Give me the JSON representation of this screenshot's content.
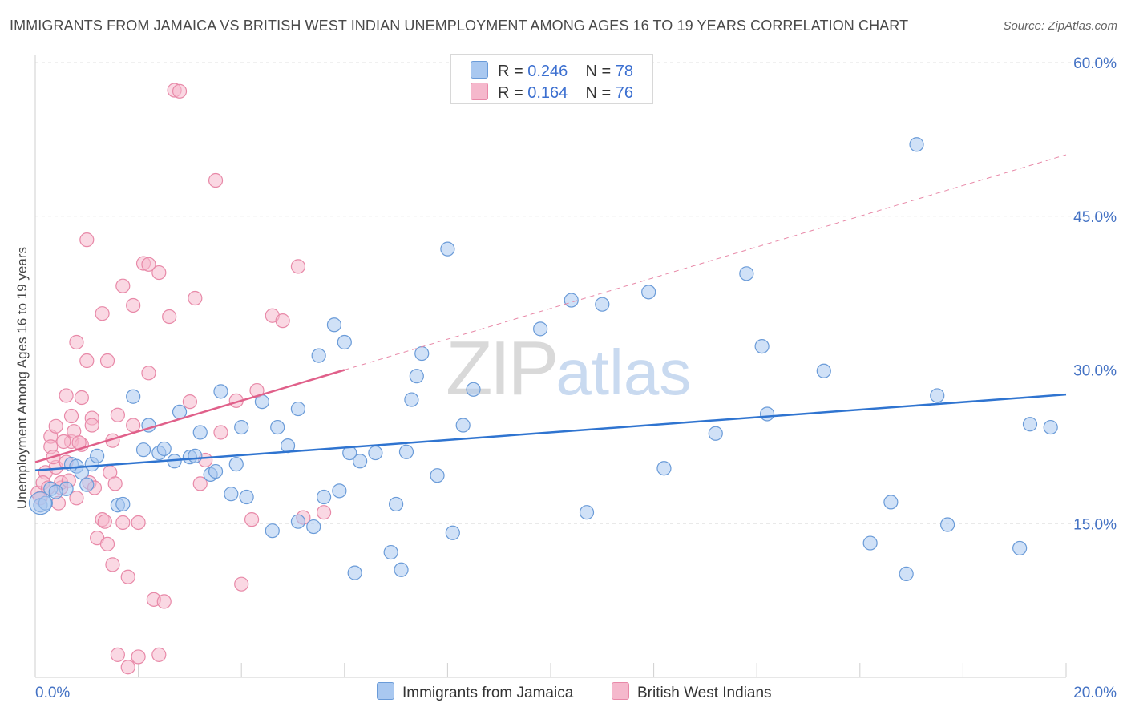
{
  "header": {
    "title": "IMMIGRANTS FROM JAMAICA VS BRITISH WEST INDIAN UNEMPLOYMENT AMONG AGES 16 TO 19 YEARS CORRELATION CHART",
    "source": "Source: ZipAtlas.com"
  },
  "watermark": {
    "zip": "ZIP",
    "atlas": "atlas"
  },
  "legend": {
    "rows": [
      {
        "r_label": "R =",
        "r_value": "0.246",
        "n_label": "N =",
        "n_value": "78"
      },
      {
        "r_label": "R =",
        "r_value": "0.164",
        "n_label": "N =",
        "n_value": "76"
      }
    ]
  },
  "chart_data": {
    "type": "scatter",
    "ylabel": "Unemployment Among Ages 16 to 19 years",
    "xlim": [
      0,
      20
    ],
    "ylim": [
      0,
      60
    ],
    "x_tick_labels": [
      "0.0%",
      "20.0%"
    ],
    "y_ticks": [
      15,
      30,
      45,
      60
    ],
    "y_tick_labels": [
      "15.0%",
      "30.0%",
      "45.0%",
      "60.0%"
    ],
    "grid": true,
    "legend_position": "top-center",
    "colors": {
      "blue_fill": "#a9c8f0",
      "blue_stroke": "#6a9bd8",
      "blue_line": "#2f74d0",
      "pink_fill": "#f5b8cc",
      "pink_stroke": "#e889a8",
      "pink_line": "#e0608a"
    },
    "series": [
      {
        "name": "Immigrants from Jamaica",
        "color": "#a9c8f0",
        "trend": {
          "x": [
            0,
            20
          ],
          "y": [
            20.2,
            27.6
          ],
          "style": "solid"
        },
        "points": [
          [
            0.1,
            16.8
          ],
          [
            0.3,
            18.4
          ],
          [
            0.6,
            18.4
          ],
          [
            0.7,
            20.8
          ],
          [
            0.8,
            20.6
          ],
          [
            0.9,
            20.0
          ],
          [
            1.0,
            18.8
          ],
          [
            1.1,
            20.8
          ],
          [
            1.6,
            16.8
          ],
          [
            1.7,
            16.9
          ],
          [
            1.9,
            27.4
          ],
          [
            2.1,
            22.2
          ],
          [
            2.2,
            24.6
          ],
          [
            2.4,
            21.9
          ],
          [
            2.5,
            22.3
          ],
          [
            2.7,
            21.1
          ],
          [
            2.8,
            25.9
          ],
          [
            3.0,
            21.5
          ],
          [
            3.1,
            21.6
          ],
          [
            3.2,
            23.9
          ],
          [
            3.4,
            19.8
          ],
          [
            3.5,
            20.1
          ],
          [
            3.6,
            27.9
          ],
          [
            3.8,
            17.9
          ],
          [
            3.9,
            20.8
          ],
          [
            4.0,
            24.4
          ],
          [
            4.1,
            17.6
          ],
          [
            4.4,
            26.9
          ],
          [
            4.6,
            14.3
          ],
          [
            4.7,
            24.4
          ],
          [
            4.9,
            22.6
          ],
          [
            5.1,
            15.2
          ],
          [
            5.1,
            26.2
          ],
          [
            5.4,
            14.7
          ],
          [
            5.5,
            31.4
          ],
          [
            5.6,
            17.6
          ],
          [
            5.8,
            34.4
          ],
          [
            5.9,
            18.2
          ],
          [
            6.0,
            32.7
          ],
          [
            6.1,
            21.9
          ],
          [
            6.2,
            10.2
          ],
          [
            6.3,
            21.1
          ],
          [
            6.6,
            21.9
          ],
          [
            6.9,
            12.2
          ],
          [
            7.0,
            16.9
          ],
          [
            7.1,
            10.5
          ],
          [
            7.2,
            22.0
          ],
          [
            7.3,
            27.1
          ],
          [
            7.4,
            29.4
          ],
          [
            7.5,
            31.6
          ],
          [
            7.8,
            19.7
          ],
          [
            8.1,
            14.1
          ],
          [
            8.3,
            24.6
          ],
          [
            8.5,
            28.1
          ],
          [
            9.8,
            34.0
          ],
          [
            10.4,
            36.8
          ],
          [
            10.7,
            16.1
          ],
          [
            11.0,
            36.4
          ],
          [
            11.9,
            37.6
          ],
          [
            12.2,
            20.4
          ],
          [
            13.8,
            39.4
          ],
          [
            14.1,
            32.3
          ],
          [
            14.2,
            25.7
          ],
          [
            15.3,
            29.9
          ],
          [
            16.2,
            13.1
          ],
          [
            16.6,
            17.1
          ],
          [
            16.9,
            10.1
          ],
          [
            17.1,
            52.0
          ],
          [
            17.5,
            27.5
          ],
          [
            17.7,
            14.9
          ],
          [
            19.1,
            12.6
          ],
          [
            19.3,
            24.7
          ],
          [
            19.7,
            24.4
          ],
          [
            0.2,
            17.0
          ],
          [
            0.4,
            18.1
          ],
          [
            1.2,
            21.6
          ],
          [
            8.0,
            41.8
          ],
          [
            13.2,
            23.8
          ]
        ]
      },
      {
        "name": "British West Indians",
        "color": "#f5b8cc",
        "trend": {
          "x": [
            0,
            6
          ],
          "y": [
            21.0,
            30.0
          ],
          "style": "solid",
          "extension": {
            "x": [
              6,
              20
            ],
            "y": [
              30.0,
              51.0
            ],
            "style": "dashed"
          }
        },
        "points": [
          [
            0.05,
            18.0
          ],
          [
            0.1,
            17.5
          ],
          [
            0.2,
            20.0
          ],
          [
            0.3,
            23.5
          ],
          [
            0.3,
            22.5
          ],
          [
            0.4,
            24.5
          ],
          [
            0.4,
            20.5
          ],
          [
            0.5,
            18.5
          ],
          [
            0.5,
            19.0
          ],
          [
            0.6,
            21.0
          ],
          [
            0.6,
            27.5
          ],
          [
            0.7,
            23.0
          ],
          [
            0.7,
            25.5
          ],
          [
            0.8,
            17.5
          ],
          [
            0.8,
            32.7
          ],
          [
            0.9,
            27.3
          ],
          [
            0.9,
            22.7
          ],
          [
            1.0,
            42.7
          ],
          [
            1.0,
            30.9
          ],
          [
            1.1,
            25.3
          ],
          [
            1.1,
            24.6
          ],
          [
            1.2,
            13.6
          ],
          [
            1.3,
            35.5
          ],
          [
            1.3,
            15.4
          ],
          [
            1.4,
            13.0
          ],
          [
            1.4,
            30.9
          ],
          [
            1.5,
            11.0
          ],
          [
            1.5,
            23.1
          ],
          [
            1.6,
            25.6
          ],
          [
            1.7,
            15.1
          ],
          [
            1.7,
            38.2
          ],
          [
            1.8,
            9.8
          ],
          [
            1.9,
            36.3
          ],
          [
            1.9,
            24.6
          ],
          [
            2.0,
            15.1
          ],
          [
            2.1,
            40.4
          ],
          [
            2.2,
            40.3
          ],
          [
            2.2,
            29.7
          ],
          [
            2.3,
            7.6
          ],
          [
            2.4,
            39.5
          ],
          [
            2.5,
            7.4
          ],
          [
            2.6,
            35.2
          ],
          [
            2.7,
            57.3
          ],
          [
            2.8,
            57.2
          ],
          [
            3.0,
            26.9
          ],
          [
            3.1,
            37.0
          ],
          [
            3.2,
            18.9
          ],
          [
            3.3,
            21.2
          ],
          [
            3.5,
            48.5
          ],
          [
            3.6,
            23.9
          ],
          [
            3.9,
            27.0
          ],
          [
            4.0,
            9.1
          ],
          [
            4.2,
            15.4
          ],
          [
            4.3,
            28.0
          ],
          [
            4.6,
            35.3
          ],
          [
            4.8,
            34.8
          ],
          [
            5.1,
            40.1
          ],
          [
            5.2,
            15.6
          ],
          [
            5.6,
            16.1
          ],
          [
            1.6,
            2.2
          ],
          [
            1.8,
            1.0
          ],
          [
            2.0,
            2.0
          ],
          [
            2.4,
            2.2
          ],
          [
            0.15,
            19.0
          ],
          [
            0.25,
            18.5
          ],
          [
            0.35,
            21.5
          ],
          [
            0.45,
            17.0
          ],
          [
            0.55,
            23.0
          ],
          [
            0.65,
            19.2
          ],
          [
            0.75,
            24.0
          ],
          [
            0.85,
            22.9
          ],
          [
            1.05,
            19.0
          ],
          [
            1.15,
            18.5
          ],
          [
            1.35,
            15.2
          ],
          [
            1.45,
            20.0
          ],
          [
            1.55,
            18.9
          ]
        ]
      }
    ]
  },
  "bottom_legend": [
    "Immigrants from Jamaica",
    "British West Indians"
  ]
}
